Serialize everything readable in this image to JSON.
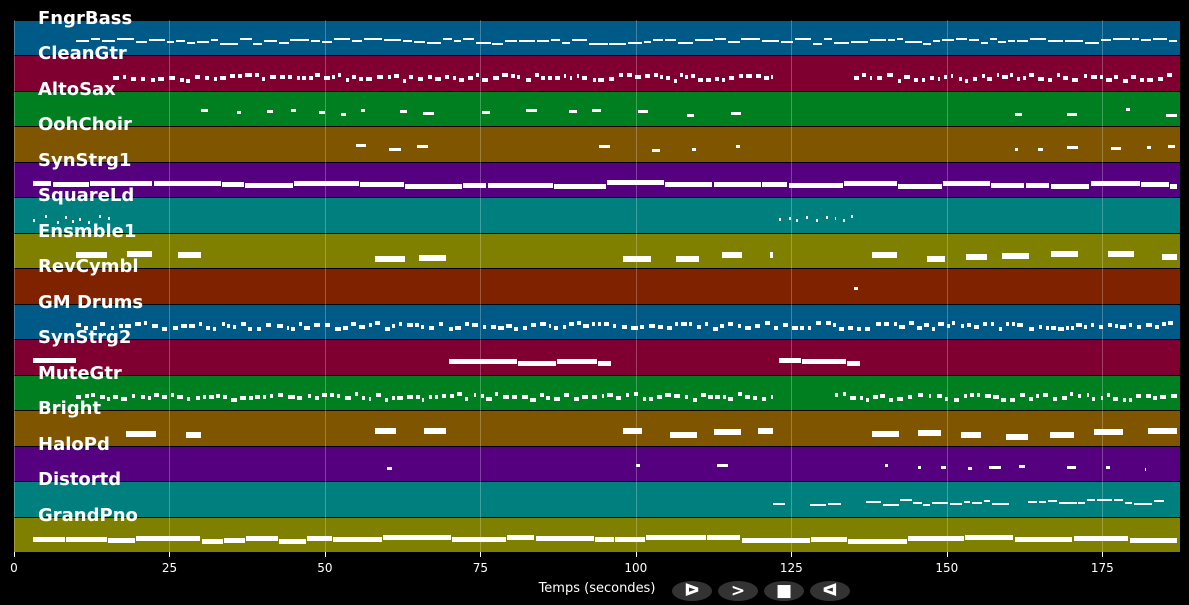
{
  "chart_data": {
    "type": "piano-roll",
    "xlabel": "Temps (secondes)",
    "xlim": [
      0,
      187.5
    ],
    "xticks": [
      0,
      25,
      50,
      75,
      100,
      125,
      150,
      175
    ],
    "grid": true,
    "tracks": [
      {
        "name": "FngrBass",
        "color": "#005a87",
        "style": "line",
        "ranges": [
          [
            10,
            187
          ]
        ]
      },
      {
        "name": "CleanGtr",
        "color": "#7f0030",
        "style": "dense",
        "ranges": [
          [
            16,
            122
          ],
          [
            135,
            187
          ]
        ]
      },
      {
        "name": "AltoSax",
        "color": "#007f20",
        "style": "sparse",
        "ranges": [
          [
            30,
            121
          ],
          [
            161,
            187
          ]
        ]
      },
      {
        "name": "OohChoir",
        "color": "#7f5500",
        "style": "sparse",
        "ranges": [
          [
            55,
            68
          ],
          [
            94,
            121
          ],
          [
            161,
            187
          ]
        ]
      },
      {
        "name": "SynStrg1",
        "color": "#55007f",
        "style": "thick",
        "ranges": [
          [
            3,
            187
          ]
        ]
      },
      {
        "name": "SquareLd",
        "color": "#007f7f",
        "style": "tiny",
        "ranges": [
          [
            3,
            16
          ],
          [
            123,
            135
          ]
        ]
      },
      {
        "name": "Ensmble1",
        "color": "#7f7f00",
        "style": "blocks",
        "ranges": [
          [
            10,
            30
          ],
          [
            58,
            70
          ],
          [
            98,
            122
          ],
          [
            138,
            187
          ]
        ]
      },
      {
        "name": "RevCymbl",
        "color": "#7f2200",
        "style": "single",
        "ranges": [
          [
            135,
            136
          ]
        ]
      },
      {
        "name": "GM Drums",
        "color": "#005a87",
        "style": "dense",
        "ranges": [
          [
            10,
            187
          ]
        ]
      },
      {
        "name": "SynStrg2",
        "color": "#7f0030",
        "style": "thick",
        "ranges": [
          [
            3,
            10
          ],
          [
            70,
            96
          ],
          [
            123,
            136
          ]
        ]
      },
      {
        "name": "MuteGtr",
        "color": "#007f20",
        "style": "dense",
        "ranges": [
          [
            10,
            122
          ],
          [
            132,
            187
          ]
        ]
      },
      {
        "name": "Bright",
        "color": "#7f5500",
        "style": "blocks",
        "ranges": [
          [
            18,
            30
          ],
          [
            58,
            70
          ],
          [
            98,
            122
          ],
          [
            138,
            187
          ]
        ]
      },
      {
        "name": "HaloPd",
        "color": "#55007f",
        "style": "sparse",
        "ranges": [
          [
            60,
            63
          ],
          [
            100,
            103
          ],
          [
            113,
            116
          ],
          [
            140,
            182
          ]
        ]
      },
      {
        "name": "Distortd",
        "color": "#007f7f",
        "style": "line",
        "ranges": [
          [
            122,
            124
          ],
          [
            128,
            133
          ],
          [
            137,
            160
          ],
          [
            163,
            185
          ]
        ]
      },
      {
        "name": "GrandPno",
        "color": "#7f7f00",
        "style": "thick",
        "ranges": [
          [
            3,
            187
          ]
        ]
      }
    ]
  },
  "controls": {
    "play": "ᐅ",
    "next": ">",
    "stop": "■",
    "prev": "ᐊ"
  }
}
